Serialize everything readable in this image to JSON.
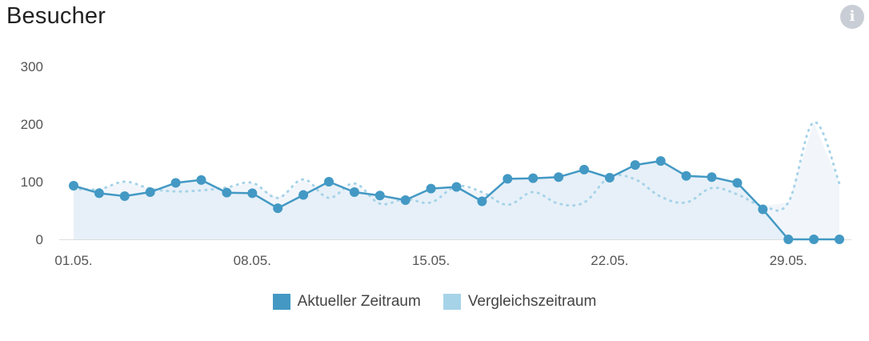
{
  "header": {
    "title": "Besucher",
    "info_icon": "info-icon"
  },
  "colors": {
    "current": "#4399c4",
    "comparison": "#a6d3e8",
    "current_fill": "#e6eff8",
    "comparison_fill": "#f2f6fb",
    "axis": "#dddddd"
  },
  "legend": {
    "current_label": "Aktueller Zeitraum",
    "comparison_label": "Vergleichszeitraum"
  },
  "chart_data": {
    "type": "line",
    "title": "Besucher",
    "xlabel": "",
    "ylabel": "",
    "x": [
      "01.05.",
      "02.05.",
      "03.05.",
      "04.05.",
      "05.05.",
      "06.05.",
      "07.05.",
      "08.05.",
      "09.05.",
      "10.05.",
      "11.05.",
      "12.05.",
      "13.05.",
      "14.05.",
      "15.05.",
      "16.05.",
      "17.05.",
      "18.05.",
      "19.05.",
      "20.05.",
      "21.05.",
      "22.05.",
      "23.05.",
      "24.05.",
      "25.05.",
      "26.05.",
      "27.05.",
      "28.05.",
      "29.05.",
      "30.05.",
      "31.05."
    ],
    "x_tick_labels": [
      "01.05.",
      "08.05.",
      "15.05.",
      "22.05.",
      "29.05."
    ],
    "y_tick_labels": [
      "0",
      "100",
      "200",
      "300"
    ],
    "ylim": [
      0,
      300
    ],
    "grid": false,
    "legend_position": "bottom",
    "series": [
      {
        "name": "Aktueller Zeitraum",
        "style": "solid-with-markers",
        "values": [
          93,
          80,
          75,
          82,
          98,
          103,
          81,
          80,
          54,
          77,
          100,
          82,
          76,
          68,
          88,
          91,
          66,
          105,
          106,
          108,
          121,
          107,
          129,
          136,
          110,
          108,
          98,
          52,
          0,
          0,
          0
        ]
      },
      {
        "name": "Vergleichszeitraum",
        "style": "dotted",
        "values": [
          88,
          87,
          100,
          88,
          83,
          85,
          90,
          98,
          72,
          104,
          72,
          97,
          62,
          70,
          64,
          92,
          82,
          60,
          82,
          62,
          64,
          108,
          104,
          74,
          64,
          89,
          78,
          58,
          64,
          203,
          97
        ]
      }
    ]
  }
}
